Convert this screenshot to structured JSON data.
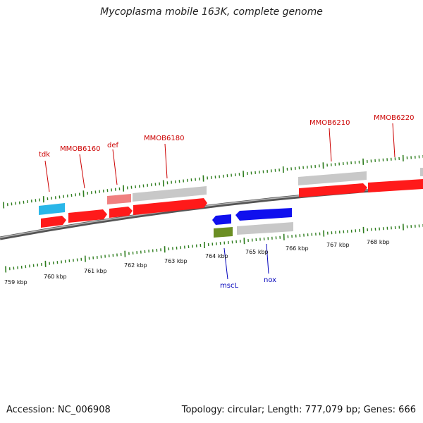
{
  "title": "Mycoplasma mobile 163K, complete genome",
  "footer": {
    "accession": "Accession: NC_006908",
    "topology": "Topology: circular; Length: 777,079 bp; Genes: 666"
  },
  "colors": {
    "backbone": "#808080",
    "tick": "#2e7d1e",
    "forward_cds": "#ff1a1a",
    "forward_gene": "#c0c0c0",
    "reverse_cds": "#1010ee",
    "forward_label": "#cc0000",
    "reverse_label": "#0000bb",
    "cyan_feature": "#29b6e8",
    "pink_feature": "#f08080",
    "olive_feature": "#6b8e23"
  },
  "scale_labels": [
    "759 kbp",
    "760 kbp",
    "761 kbp",
    "762 kbp",
    "763 kbp",
    "764 kbp",
    "765 kbp",
    "766 kbp",
    "767 kbp",
    "768 kbp"
  ],
  "forward_labels": [
    "tdk",
    "MMOB6160",
    "def",
    "MMOB6180",
    "MMOB6210",
    "MMOB6220"
  ],
  "reverse_labels": [
    "mscL",
    "nox"
  ]
}
